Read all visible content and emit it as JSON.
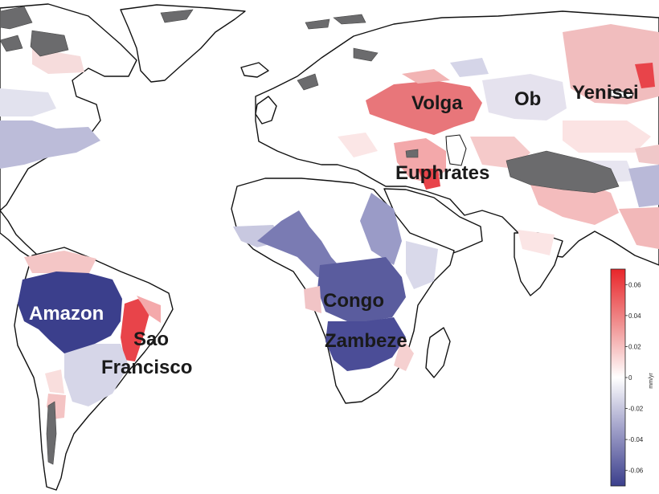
{
  "basins": [
    {
      "name": "Amazon",
      "trend": -0.065
    },
    {
      "name": "Sao Francisco",
      "trend": 0.045
    },
    {
      "name": "Congo",
      "trend": -0.045
    },
    {
      "name": "Zambeze",
      "trend": -0.05
    },
    {
      "name": "Volga",
      "trend": 0.035
    },
    {
      "name": "Ob",
      "trend": -0.005
    },
    {
      "name": "Yenisei",
      "trend": 0.04
    },
    {
      "name": "Euphrates",
      "trend": 0.04
    }
  ],
  "labels": {
    "amazon": "Amazon",
    "sao": "Sao",
    "francisco": "Francisco",
    "congo": "Congo",
    "zambeze": "Zambeze",
    "volga": "Volga",
    "ob": "Ob",
    "yenisei": "Yenisei",
    "euphrates": "Euphrates"
  },
  "colorbar": {
    "unit": "mm/yr",
    "min": -0.07,
    "max": 0.07,
    "ticks": [
      "0.06",
      "0.04",
      "0.02",
      "0",
      "-0.02",
      "-0.04",
      "-0.06"
    ],
    "tick_values": [
      0.06,
      0.04,
      0.02,
      0,
      -0.02,
      -0.04,
      -0.06
    ],
    "colors": {
      "negative": "#3b3f8c",
      "zero": "#ffffff",
      "positive": "#e8262a"
    }
  }
}
